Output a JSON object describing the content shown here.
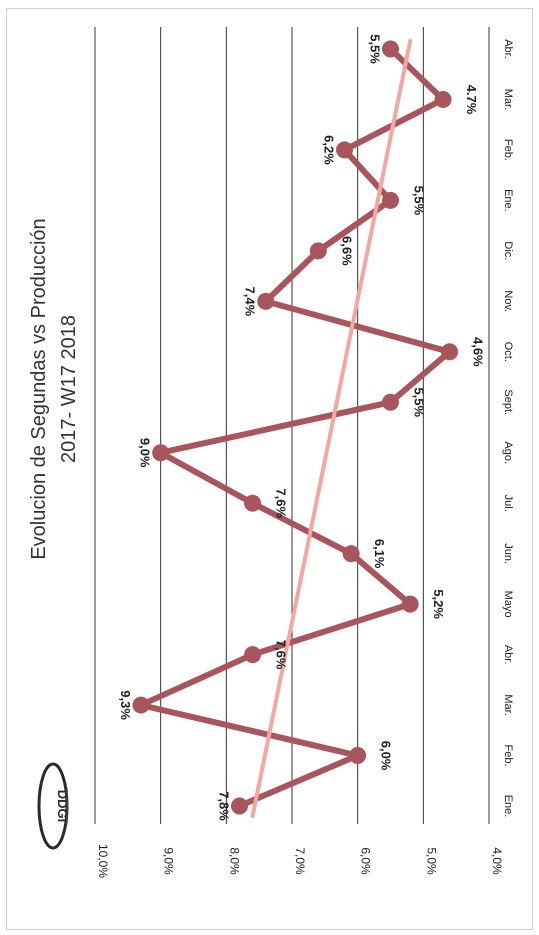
{
  "chart_data": {
    "type": "line",
    "title": "Evolucion de Segundas vs Producción",
    "subtitle": "2017- W17 2018",
    "logo_text": "DDGI",
    "logo_subtext": "International Medical",
    "categories": [
      "Ene.",
      "Feb.",
      "Mar.",
      "Abr.",
      "Mayo",
      "Jun.",
      "Jul.",
      "Ago.",
      "Sept.",
      "Oct.",
      "Nov.",
      "Dic.",
      "Ene.",
      "Feb.",
      "Mar.",
      "Abr."
    ],
    "series": [
      {
        "values": [
          7.8,
          6.0,
          9.3,
          7.6,
          5.2,
          6.1,
          7.6,
          9.0,
          5.5,
          4.6,
          7.4,
          6.6,
          5.5,
          6.2,
          4.7,
          5.5
        ],
        "labels": [
          "7,8%",
          "6,0%",
          "9,3%",
          "7,6%",
          "5,2%",
          "6,1%",
          "7,6%",
          "9,0%",
          "5,5%",
          "4,6%",
          "7,4%",
          "6,6%",
          "5,5%",
          "6,2%",
          "4.7%",
          "5,5%"
        ],
        "color": "#a9555c"
      }
    ],
    "trendline": {
      "from": 7.6,
      "to": 5.2,
      "color": "#f2a7a0"
    },
    "y_ticks": [
      "10,0%",
      "9,0%",
      "8,0%",
      "7,0%",
      "6,0%",
      "5,0%",
      "4,0%"
    ],
    "ylim": [
      4.0,
      10.0
    ],
    "grid": true,
    "legend": "none",
    "orientation": "rotated-90-clockwise"
  }
}
